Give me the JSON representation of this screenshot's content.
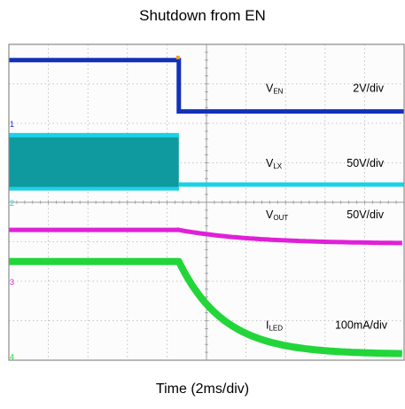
{
  "chart_data": {
    "type": "line",
    "title": "Shutdown from EN",
    "xlabel": "Time (2ms/div)",
    "x_divisions": 10,
    "y_divisions": 8,
    "grid": true,
    "event_division": 4.3,
    "colors": {
      "background": "#fcfcfc",
      "grid": "#b5b5b5",
      "frame": "#8a8a8a",
      "trigger": "#f0a020"
    },
    "channels": [
      {
        "name": "V",
        "sub": "EN",
        "scale": "2V/div",
        "color": "#1430b8",
        "marker": "1"
      },
      {
        "name": "V",
        "sub": "LX",
        "scale": "50V/div",
        "color": "#1ad2e6",
        "band_color": "#0f9aa0",
        "marker": "2"
      },
      {
        "name": "V",
        "sub": "OUT",
        "scale": "50V/div",
        "color": "#e020d8",
        "marker": "3"
      },
      {
        "name": "I",
        "sub": "LED",
        "scale": "100mA/div",
        "color": "#22d63a",
        "marker": "4"
      }
    ]
  }
}
